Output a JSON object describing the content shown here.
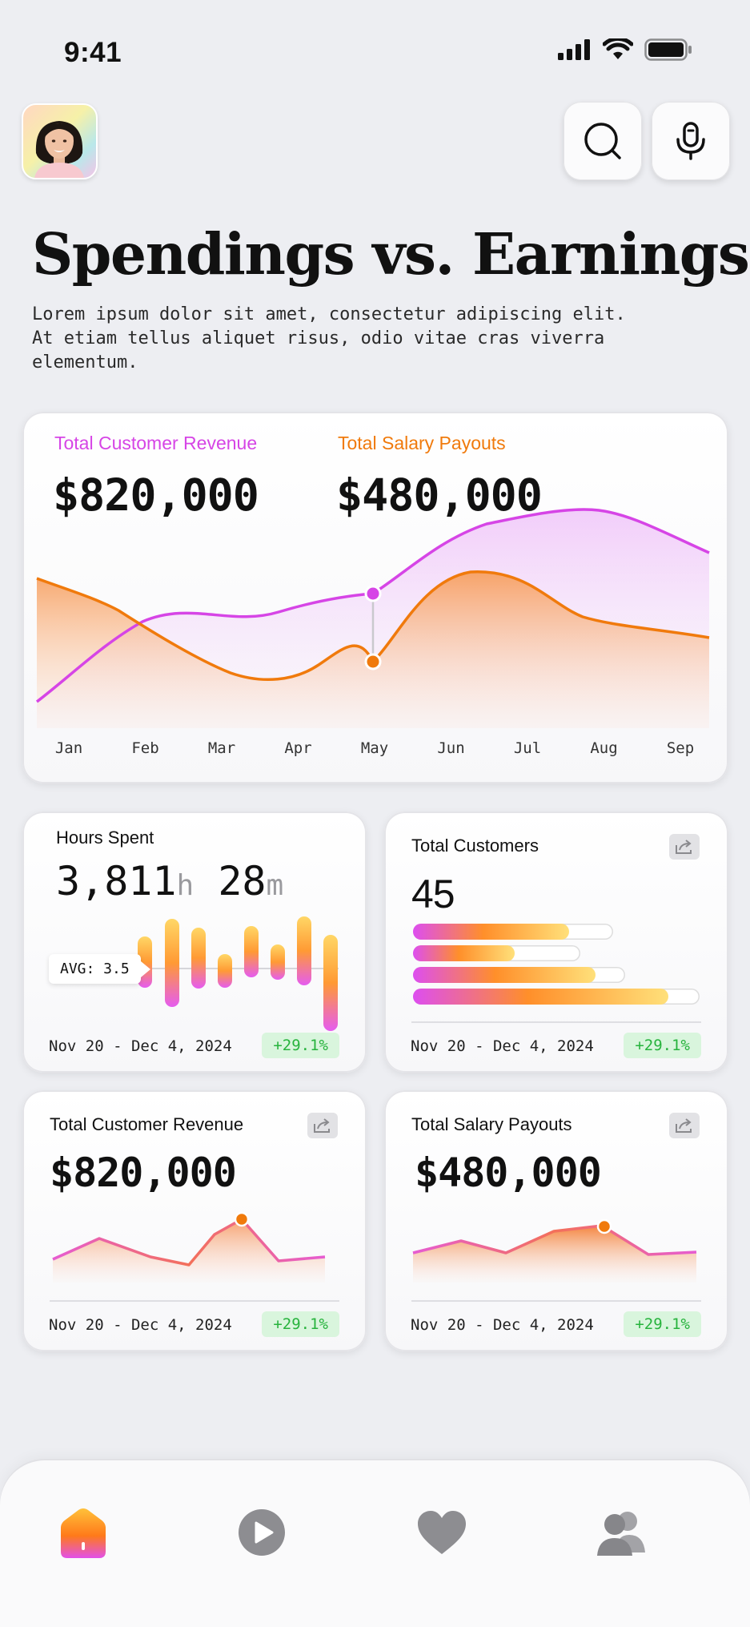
{
  "status": {
    "time": "9:41"
  },
  "header": {
    "search_label": "search",
    "mic_label": "voice"
  },
  "page": {
    "title": "Spendings vs. Earnings",
    "subtitle": "Lorem ipsum dolor sit amet, consectetur adipiscing elit. At etiam tellus aliquet risus, odio vitae cras viverra elementum."
  },
  "overview": {
    "revenue_label": "Total Customer Revenue",
    "revenue_value": "$820,000",
    "salary_label": "Total Salary Payouts",
    "salary_value": "$480,000",
    "months": [
      "Jan",
      "Feb",
      "Mar",
      "Apr",
      "May",
      "Jun",
      "Jul",
      "Aug",
      "Sep"
    ]
  },
  "hours": {
    "title": "Hours Spent",
    "hours": "3,811",
    "h_unit": "h",
    "minutes": "28",
    "m_unit": "m",
    "avg_label": "AVG: 3.5",
    "date": "Nov 20 - Dec 4, 2024",
    "change": "+29.1%"
  },
  "customers": {
    "title": "Total Customers",
    "value": "45",
    "bar_fill_percent": [
      78,
      61,
      86,
      89
    ],
    "date": "Nov 20 - Dec 4, 2024",
    "change": "+29.1%"
  },
  "revenue_card": {
    "title": "Total Customer Revenue",
    "value": "$820,000",
    "date": "Nov 20 - Dec 4, 2024",
    "change": "+29.1%"
  },
  "salary_card": {
    "title": "Total Salary Payouts",
    "value": "$480,000",
    "date": "Nov 20 - Dec 4, 2024",
    "change": "+29.1%"
  },
  "nav": {
    "items": [
      "home",
      "play",
      "favorites",
      "people"
    ]
  },
  "colors": {
    "revenue": "#d645e6",
    "salary": "#f07a0c",
    "positive": "#27b33d"
  }
}
